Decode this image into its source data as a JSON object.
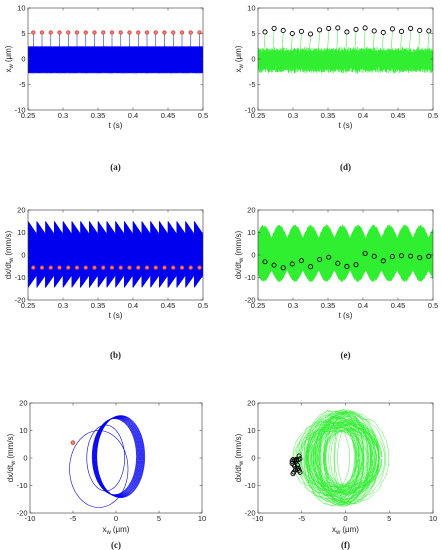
{
  "colors": {
    "blue": "#0000ee",
    "green": "#33ee33",
    "marker_red": "#e0413a",
    "marker_black": "#000000",
    "frame": "#333333"
  },
  "chart_data": [
    {
      "id": "a",
      "type": "line",
      "panel_label": "(a)",
      "color": "blue",
      "xlabel": "t (s)",
      "ylabel": "x_w (μm)",
      "ylabel_main": "x",
      "ylabel_sub": "w",
      "ylabel_unit": "(μm)",
      "xlim": [
        0.25,
        0.5
      ],
      "ylim": [
        -10,
        10
      ],
      "xticks": [
        "0.25",
        "0.3",
        "0.35",
        "0.4",
        "0.45",
        "0.5"
      ],
      "yticks": [
        "-10",
        "-5",
        "0",
        "5",
        "10"
      ],
      "signal": {
        "spikes_per_second": 80,
        "spike_peak": 5.2,
        "band": [
          -2.8,
          2.5
        ]
      },
      "markers": {
        "style": "red-circle",
        "y": 5.2,
        "t": [
          0.2575,
          0.27,
          0.2825,
          0.295,
          0.3075,
          0.32,
          0.3325,
          0.345,
          0.3575,
          0.37,
          0.3825,
          0.395,
          0.4075,
          0.42,
          0.4325,
          0.445,
          0.4575,
          0.47,
          0.4825,
          0.495
        ]
      }
    },
    {
      "id": "d",
      "type": "line",
      "panel_label": "(d)",
      "color": "green",
      "xlabel": "t (s)",
      "ylabel": "x_w (μm)",
      "ylabel_main": "x",
      "ylabel_sub": "w",
      "ylabel_unit": "(μm)",
      "xlim": [
        0.25,
        0.5
      ],
      "ylim": [
        -10,
        10
      ],
      "xticks": [
        "0.25",
        "0.3",
        "0.35",
        "0.4",
        "0.45",
        "0.5"
      ],
      "yticks": [
        "-10",
        "-5",
        "0",
        "5",
        "10"
      ],
      "signal": {
        "band": [
          -2.5,
          2.0
        ]
      },
      "markers": {
        "style": "black-circle",
        "t": [
          0.26,
          0.273,
          0.286,
          0.299,
          0.312,
          0.325,
          0.338,
          0.351,
          0.364,
          0.377,
          0.39,
          0.403,
          0.416,
          0.429,
          0.442,
          0.455,
          0.468,
          0.481,
          0.494
        ],
        "y": [
          5.3,
          6.0,
          5.6,
          5.0,
          5.4,
          4.9,
          5.7,
          6.0,
          6.1,
          5.3,
          5.8,
          6.1,
          5.5,
          5.2,
          5.9,
          5.4,
          6.0,
          5.6,
          5.5
        ]
      }
    },
    {
      "id": "b",
      "type": "line",
      "panel_label": "(b)",
      "color": "blue",
      "xlabel": "t (s)",
      "ylabel": "dx/dt_w (mm/s)",
      "ylabel_main": "dx/dt",
      "ylabel_sub": "w",
      "ylabel_unit": "(mm/s)",
      "xlim": [
        0.25,
        0.5
      ],
      "ylim": [
        -20,
        20
      ],
      "xticks": [
        "0.25",
        "0.3",
        "0.35",
        "0.4",
        "0.45",
        "0.5"
      ],
      "yticks": [
        "-20",
        "-10",
        "0",
        "10",
        "20"
      ],
      "signal": {
        "band": [
          -14.5,
          15.0
        ],
        "envelope_sawtooth_per_second": 80
      },
      "markers": {
        "style": "red-circle",
        "y": -5.6,
        "t": [
          0.2575,
          0.27,
          0.2825,
          0.295,
          0.3075,
          0.32,
          0.3325,
          0.345,
          0.3575,
          0.37,
          0.3825,
          0.395,
          0.4075,
          0.42,
          0.4325,
          0.445,
          0.4575,
          0.47,
          0.4825,
          0.495
        ]
      }
    },
    {
      "id": "e",
      "type": "line",
      "panel_label": "(e)",
      "color": "green",
      "xlabel": "t (s)",
      "ylabel": "dx/dt_w (mm/s)",
      "ylabel_main": "dx/dt",
      "ylabel_sub": "w",
      "ylabel_unit": "(mm/s)",
      "xlim": [
        0.25,
        0.5
      ],
      "ylim": [
        -20,
        20
      ],
      "xticks": [
        "0.25",
        "0.3",
        "0.35",
        "0.4",
        "0.45",
        "0.5"
      ],
      "yticks": [
        "-20",
        "-10",
        "0",
        "10",
        "20"
      ],
      "signal": {
        "band": [
          -12.0,
          13.5
        ]
      },
      "markers": {
        "style": "black-circle",
        "t": [
          0.26,
          0.273,
          0.286,
          0.299,
          0.312,
          0.325,
          0.338,
          0.351,
          0.364,
          0.377,
          0.39,
          0.403,
          0.416,
          0.429,
          0.442,
          0.455,
          0.468,
          0.481,
          0.494
        ],
        "y": [
          -3.0,
          -4.5,
          -5.7,
          -4.0,
          -2.5,
          -5.2,
          -2.0,
          -1.0,
          -3.7,
          -5.1,
          -4.3,
          0.7,
          -0.6,
          -2.6,
          -0.7,
          -0.3,
          -0.5,
          -1.2,
          -0.6
        ]
      }
    },
    {
      "id": "c",
      "type": "scatter",
      "panel_label": "(c)",
      "color": "blue",
      "xlabel": "x_w (μm)",
      "xlabel_main": "x",
      "xlabel_sub": "w",
      "xlabel_unit": "(μm)",
      "ylabel": "dx/dt_w (mm/s)",
      "ylabel_main": "dx/dt",
      "ylabel_sub": "w",
      "ylabel_unit": "(mm/s)",
      "xlim": [
        -10,
        10
      ],
      "ylim": [
        -20,
        20
      ],
      "xticks": [
        "-10",
        "-5",
        "0",
        "5",
        "10"
      ],
      "yticks": [
        "-20",
        "-10",
        "0",
        "10",
        "20"
      ],
      "orbit": {
        "big_loop": {
          "cx": 0.0,
          "cy": 0.5,
          "rx": 2.8,
          "ry": 15.0,
          "phase_loops": 24
        },
        "inner_loop": {
          "cx": -1.2,
          "cy": 0.0,
          "rx": 2.2,
          "ry": 12.0
        },
        "wide_loop": {
          "cx": -2.0,
          "cy": -4.0,
          "rx": 3.4,
          "ry": 14.0
        }
      },
      "markers": {
        "style": "red-circle",
        "x": [
          -5.0
        ],
        "y": [
          5.6
        ]
      }
    },
    {
      "id": "f",
      "type": "scatter",
      "panel_label": "(f)",
      "color": "green",
      "xlabel": "x_w (μm)",
      "xlabel_main": "x",
      "xlabel_sub": "w",
      "xlabel_unit": "(μm)",
      "ylabel": "dx/dt_w (mm/s)",
      "ylabel_main": "dx/dt",
      "ylabel_sub": "w",
      "ylabel_unit": "(mm/s)",
      "xlim": [
        -10,
        10
      ],
      "ylim": [
        -20,
        20
      ],
      "xticks": [
        "-10",
        "-5",
        "0",
        "5",
        "10"
      ],
      "yticks": [
        "-20",
        "-10",
        "0",
        "10",
        "20"
      ],
      "orbit": {
        "center_x": -0.5,
        "rx_range": [
          1.5,
          4.5
        ],
        "ry_range": [
          10,
          17.5
        ]
      },
      "markers": {
        "style": "black-circle",
        "x": [
          -5.8,
          -5.3,
          -6.0,
          -5.5,
          -5.9,
          -5.2,
          -6.1,
          -5.6,
          -5.4,
          -5.9,
          -5.7,
          -5.3,
          -6.0,
          -5.5,
          -5.8,
          -5.2,
          -5.6,
          -6.1,
          -5.4
        ],
        "y": [
          5.3,
          6.0,
          5.6,
          5.0,
          5.4,
          4.9,
          5.7,
          6.0,
          6.1,
          5.3,
          5.8,
          6.1,
          5.5,
          5.2,
          5.9,
          5.4,
          6.0,
          5.6,
          5.5
        ],
        "vy": [
          -3.0,
          -4.5,
          -5.7,
          -4.0,
          -2.5,
          -5.2,
          -2.0,
          -1.0,
          -3.7,
          -5.1,
          -4.3,
          0.7,
          -0.6,
          -2.6,
          -0.7,
          -0.3,
          -0.5,
          -1.2,
          -0.6
        ]
      }
    }
  ]
}
